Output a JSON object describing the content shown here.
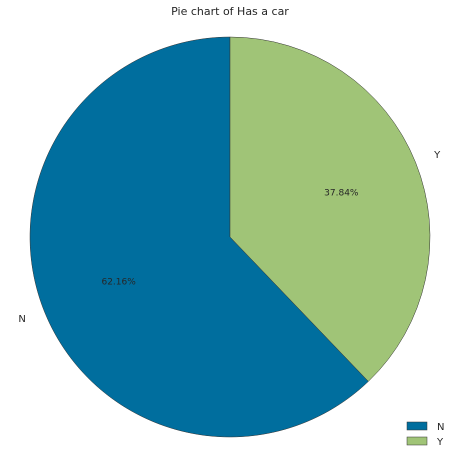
{
  "chart_data": {
    "type": "pie",
    "title": "Pie chart of Has a car",
    "labels": [
      "N",
      "Y"
    ],
    "values": [
      62.16,
      37.84
    ],
    "percent_labels": [
      "62.16%",
      "37.84%"
    ],
    "colors": [
      "#006e9e",
      "#a0c477"
    ],
    "legend": {
      "placement": "bottom-right",
      "entries": [
        "N",
        "Y"
      ]
    },
    "start_angle_deg": 90,
    "direction": "counterclockwise"
  }
}
